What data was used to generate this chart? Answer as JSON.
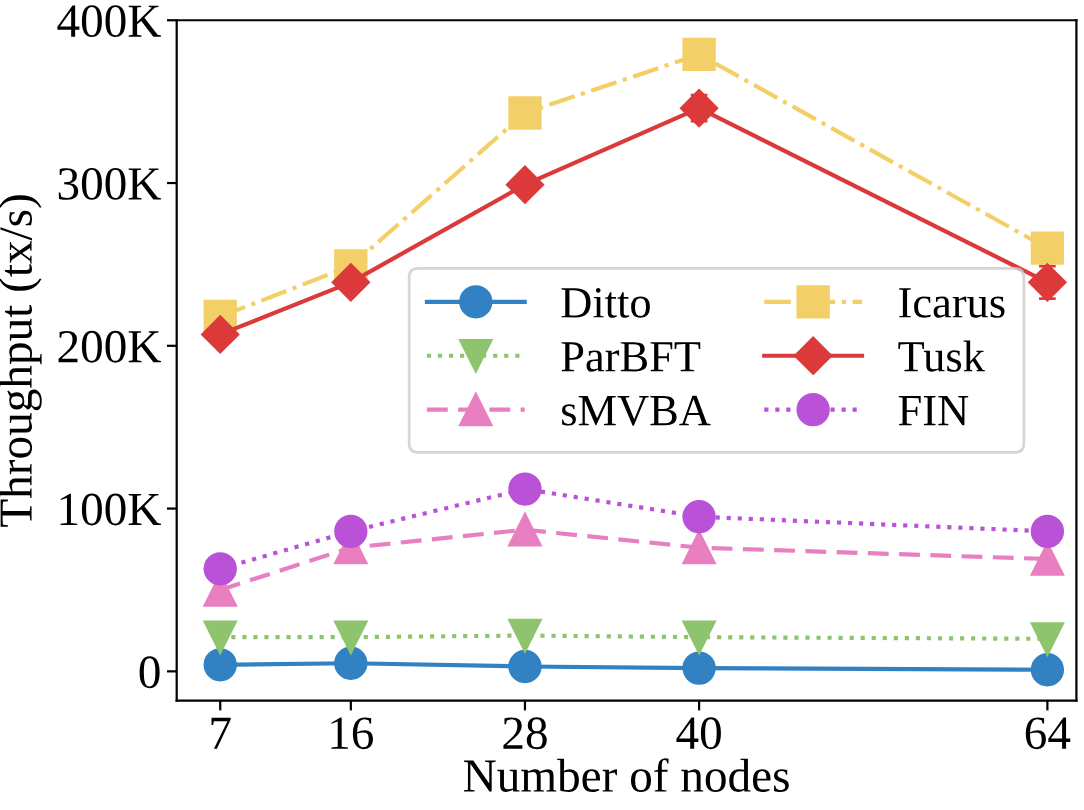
{
  "chart_data": {
    "type": "line",
    "xlabel": "Number of nodes",
    "ylabel": "Throughput (tx/s)",
    "x": [
      7,
      16,
      28,
      40,
      64
    ],
    "xlim": [
      4,
      66
    ],
    "xticks": [
      7,
      16,
      28,
      40,
      64
    ],
    "ylim": [
      -18000,
      400000
    ],
    "yticks": [
      0,
      {
        "value": 100000,
        "label": "100K"
      },
      {
        "value": 200000,
        "label": "200K"
      },
      {
        "value": 300000,
        "label": "300K"
      },
      {
        "value": 400000,
        "label": "400K"
      }
    ],
    "grid": false,
    "legend": "center",
    "series": [
      {
        "name": "Ditto",
        "color": "#3282c3",
        "marker": "circle",
        "line_style": "solid",
        "values": [
          4000,
          5000,
          3000,
          2000,
          1000
        ]
      },
      {
        "name": "ParBFT",
        "color": "#8fc46e",
        "marker": "triangle-down",
        "line_style": "dotted",
        "values": [
          21000,
          21000,
          22000,
          21000,
          20000
        ]
      },
      {
        "name": "sMVBA",
        "color": "#e77fc0",
        "marker": "triangle",
        "line_style": "dashed",
        "values": [
          50000,
          76000,
          87000,
          76000,
          69000
        ]
      },
      {
        "name": "Icarus",
        "color": "#f3cf67",
        "marker": "square",
        "line_style": "dashdot",
        "values": [
          218000,
          249000,
          343000,
          379000,
          260000
        ]
      },
      {
        "name": "Tusk",
        "color": "#dc3a3a",
        "marker": "diamond",
        "line_style": "solid",
        "values": [
          207000,
          239000,
          299000,
          346000,
          239000
        ],
        "errors": [
          null,
          null,
          null,
          8000,
          10000
        ]
      },
      {
        "name": "FIN",
        "color": "#b952d6",
        "marker": "circle",
        "line_style": "dotted",
        "values": [
          63000,
          86000,
          112000,
          95000,
          86000
        ]
      }
    ]
  }
}
